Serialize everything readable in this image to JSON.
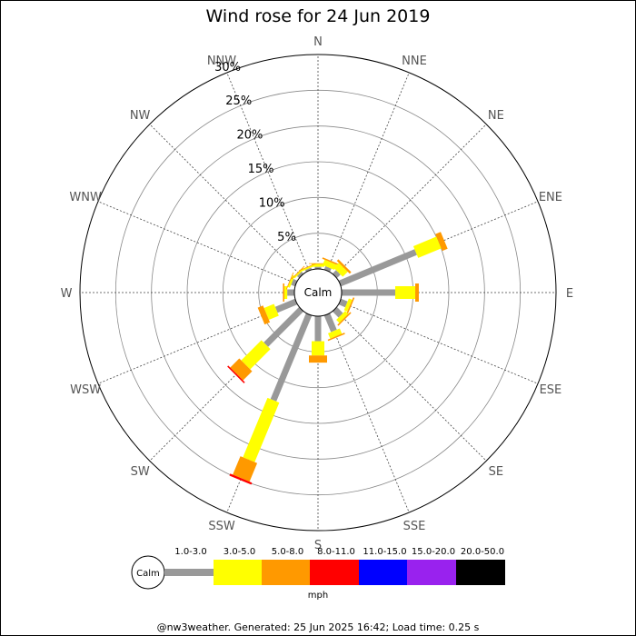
{
  "chart_data": {
    "type": "windrose",
    "title": "Wind rose for 24 Jun 2019",
    "directions": [
      "N",
      "NNE",
      "NE",
      "ENE",
      "E",
      "ESE",
      "SE",
      "SSE",
      "S",
      "SSW",
      "SW",
      "WSW",
      "W",
      "WNW",
      "NW",
      "NNW"
    ],
    "radial_max": 30,
    "radial_ticks": [
      5,
      10,
      15,
      20,
      25,
      30
    ],
    "radial_tick_labels": [
      "5%",
      "10%",
      "15%",
      "20%",
      "25%",
      "30%"
    ],
    "calm_label": "Calm",
    "units": "mph",
    "bins": [
      {
        "label": "1.0-3.0",
        "color": "#999999"
      },
      {
        "label": "3.0-5.0",
        "color": "#ffff00"
      },
      {
        "label": "5.0-8.0",
        "color": "#ff9900"
      },
      {
        "label": "8.0-11.0",
        "color": "#ff0000"
      },
      {
        "label": "11.0-15.0",
        "color": "#0000ff"
      },
      {
        "label": "15.0-20.0",
        "color": "#9922ee"
      },
      {
        "label": "20.0-50.0",
        "color": "#000000"
      }
    ],
    "frequencies": {
      "N": [
        0.3,
        0.4,
        0.1,
        0,
        0,
        0,
        0
      ],
      "NNE": [
        0.5,
        0.8,
        0.2,
        0,
        0,
        0,
        0
      ],
      "NE": [
        0.7,
        1.0,
        0.3,
        0,
        0,
        0,
        0
      ],
      "ENE": [
        11.5,
        3.5,
        0.8,
        0,
        0,
        0,
        0
      ],
      "E": [
        7.5,
        2.8,
        0.5,
        0,
        0,
        0,
        0
      ],
      "ESE": [
        1.0,
        0.5,
        0.2,
        0,
        0,
        0,
        0
      ],
      "SE": [
        1.2,
        0.6,
        0.2,
        0,
        0,
        0,
        0
      ],
      "SSE": [
        2.5,
        0.8,
        0.2,
        0,
        0,
        0,
        0
      ],
      "S": [
        3.5,
        2.0,
        1.0,
        0,
        0,
        0,
        0
      ],
      "SSW": [
        13.0,
        9.0,
        2.8,
        0.3,
        0,
        0,
        0
      ],
      "SW": [
        7.0,
        4.0,
        1.8,
        0.2,
        0,
        0,
        0
      ],
      "WSW": [
        3.0,
        1.5,
        0.8,
        0,
        0,
        0,
        0
      ],
      "W": [
        1.0,
        0.4,
        0.2,
        0,
        0,
        0,
        0
      ],
      "WNW": [
        0.6,
        0.3,
        0.1,
        0,
        0,
        0,
        0
      ],
      "NW": [
        0.4,
        0.2,
        0.1,
        0,
        0,
        0,
        0
      ],
      "NNW": [
        0.3,
        0.2,
        0.1,
        0,
        0,
        0,
        0
      ]
    }
  },
  "footer": "@nw3weather. Generated: 25 Jun 2025 16:42; Load time: 0.25 s"
}
